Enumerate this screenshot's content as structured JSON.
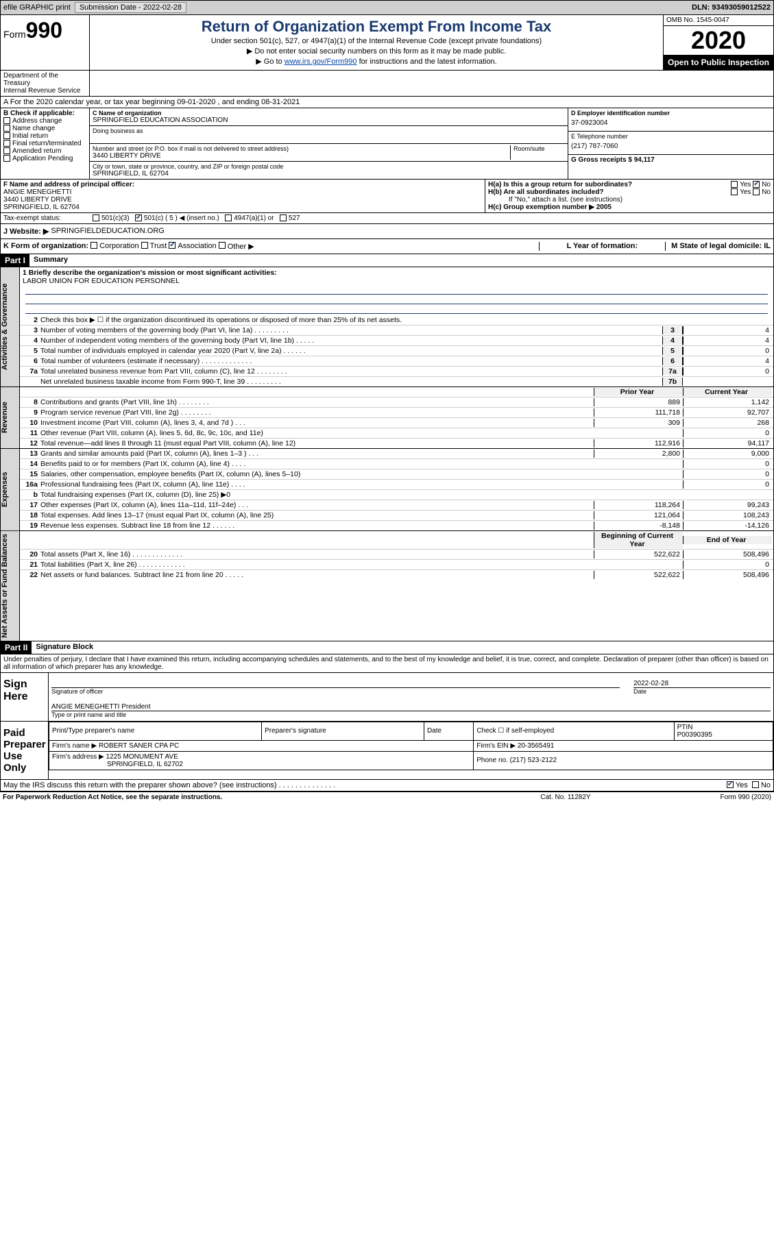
{
  "topbar": {
    "efile": "efile GRAPHIC print",
    "submission_label": "Submission Date - 2022-02-28",
    "dln_label": "DLN: 93493059012522"
  },
  "header": {
    "form_prefix": "Form",
    "form_number": "990",
    "title": "Return of Organization Exempt From Income Tax",
    "subtitle1": "Under section 501(c), 527, or 4947(a)(1) of the Internal Revenue Code (except private foundations)",
    "subtitle2": "▶ Do not enter social security numbers on this form as it may be made public.",
    "subtitle3_prefix": "▶ Go to ",
    "subtitle3_link": "www.irs.gov/Form990",
    "subtitle3_suffix": " for instructions and the latest information.",
    "dept": "Department of the Treasury\nInternal Revenue Service",
    "omb": "OMB No. 1545-0047",
    "year": "2020",
    "open": "Open to Public Inspection"
  },
  "rowA": "A For the 2020 calendar year, or tax year beginning 09-01-2020    , and ending 08-31-2021",
  "sectionB": {
    "label": "B Check if applicable:",
    "items": [
      "Address change",
      "Name change",
      "Initial return",
      "Final return/terminated",
      "Amended return",
      "Application Pending"
    ]
  },
  "sectionC": {
    "name_label": "C Name of organization",
    "name": "SPRINGFIELD EDUCATION ASSOCIATION",
    "dba_label": "Doing business as",
    "street_label": "Number and street (or P.O. box if mail is not delivered to street address)",
    "room_label": "Room/suite",
    "street": "3440 LIBERTY DRIVE",
    "city_label": "City or town, state or province, country, and ZIP or foreign postal code",
    "city": "SPRINGFIELD, IL  62704"
  },
  "sectionD": {
    "ein_label": "D Employer identification number",
    "ein": "37-0923004",
    "tel_label": "E Telephone number",
    "tel": "(217) 787-7060",
    "gross_label": "G Gross receipts $ 94,117"
  },
  "sectionF": {
    "label": "F  Name and address of principal officer:",
    "name": "ANGIE MENEGHETTI",
    "street": "3440 LIBERTY DRIVE",
    "city": "SPRINGFIELD, IL  62704"
  },
  "sectionH": {
    "ha": "H(a)  Is this a group return for subordinates?",
    "hb": "H(b)  Are all subordinates included?",
    "hb_note": "If \"No,\" attach a list. (see instructions)",
    "hc": "H(c)  Group exemption number ▶   2005",
    "yes": "Yes",
    "no": "No"
  },
  "taxExempt": {
    "label": "Tax-exempt status:",
    "c3": "501(c)(3)",
    "c5": "501(c) ( 5 ) ◀ (insert no.)",
    "a1": "4947(a)(1) or",
    "s527": "527"
  },
  "rowJ": {
    "label": "J   Website: ▶",
    "value": "SPRINGFIELDEDUCATION.ORG"
  },
  "rowK": {
    "label": "K Form of organization:",
    "corp": "Corporation",
    "trust": "Trust",
    "assoc": "Association",
    "other": "Other ▶",
    "l_label": "L Year of formation:",
    "m_label": "M State of legal domicile: IL"
  },
  "part1": {
    "hdr": "Part I",
    "title": "Summary",
    "mission_label": "1  Briefly describe the organization's mission or most significant activities:",
    "mission": "LABOR UNION FOR EDUCATION PERSONNEL",
    "line2": "Check this box ▶ ☐  if the organization discontinued its operations or disposed of more than 25% of its net assets.",
    "lines_gov": [
      {
        "n": "3",
        "t": "Number of voting members of the governing body (Part VI, line 1a)   .   .   .   .   .   .   .   .   .",
        "b": "3",
        "v": "4"
      },
      {
        "n": "4",
        "t": "Number of independent voting members of the governing body (Part VI, line 1b)   .   .   .   .   .",
        "b": "4",
        "v": "4"
      },
      {
        "n": "5",
        "t": "Total number of individuals employed in calendar year 2020 (Part V, line 2a)   .   .   .   .   .   .",
        "b": "5",
        "v": "0"
      },
      {
        "n": "6",
        "t": "Total number of volunteers (estimate if necessary)   .   .   .   .   .   .   .   .   .   .   .   .   .",
        "b": "6",
        "v": "4"
      },
      {
        "n": "7a",
        "t": "Total unrelated business revenue from Part VIII, column (C), line 12   .   .   .   .   .   .   .   .",
        "b": "7a",
        "v": "0"
      },
      {
        "n": "",
        "t": "Net unrelated business taxable income from Form 990-T, line 39   .   .   .   .   .   .   .   .   .",
        "b": "7b",
        "v": ""
      }
    ],
    "hdr_prior": "Prior Year",
    "hdr_curr": "Current Year",
    "lines_rev": [
      {
        "n": "8",
        "t": "Contributions and grants (Part VIII, line 1h)   .   .   .   .   .   .   .   .",
        "p": "889",
        "c": "1,142"
      },
      {
        "n": "9",
        "t": "Program service revenue (Part VIII, line 2g)   .   .   .   .   .   .   .   .",
        "p": "111,718",
        "c": "92,707"
      },
      {
        "n": "10",
        "t": "Investment income (Part VIII, column (A), lines 3, 4, and 7d )   .   .   .",
        "p": "309",
        "c": "268"
      },
      {
        "n": "11",
        "t": "Other revenue (Part VIII, column (A), lines 5, 6d, 8c, 9c, 10c, and 11e)",
        "p": "",
        "c": "0"
      },
      {
        "n": "12",
        "t": "Total revenue—add lines 8 through 11 (must equal Part VIII, column (A), line 12)",
        "p": "112,916",
        "c": "94,117"
      }
    ],
    "lines_exp": [
      {
        "n": "13",
        "t": "Grants and similar amounts paid (Part IX, column (A), lines 1–3 )   .   .   .",
        "p": "2,800",
        "c": "9,000"
      },
      {
        "n": "14",
        "t": "Benefits paid to or for members (Part IX, column (A), line 4)   .   .   .   .",
        "p": "",
        "c": "0"
      },
      {
        "n": "15",
        "t": "Salaries, other compensation, employee benefits (Part IX, column (A), lines 5–10)",
        "p": "",
        "c": "0"
      },
      {
        "n": "16a",
        "t": "Professional fundraising fees (Part IX, column (A), line 11e)   .   .   .   .",
        "p": "",
        "c": "0"
      },
      {
        "n": "b",
        "t": "Total fundraising expenses (Part IX, column (D), line 25) ▶0",
        "p": "grey",
        "c": "grey"
      },
      {
        "n": "17",
        "t": "Other expenses (Part IX, column (A), lines 11a–11d, 11f–24e)   .   .   .",
        "p": "118,264",
        "c": "99,243"
      },
      {
        "n": "18",
        "t": "Total expenses. Add lines 13–17 (must equal Part IX, column (A), line 25)",
        "p": "121,064",
        "c": "108,243"
      },
      {
        "n": "19",
        "t": "Revenue less expenses. Subtract line 18 from line 12   .   .   .   .   .   .",
        "p": "-8,148",
        "c": "-14,126"
      }
    ],
    "hdr_beg": "Beginning of Current Year",
    "hdr_end": "End of Year",
    "lines_net": [
      {
        "n": "20",
        "t": "Total assets (Part X, line 16)   .   .   .   .   .   .   .   .   .   .   .   .   .",
        "p": "522,622",
        "c": "508,496"
      },
      {
        "n": "21",
        "t": "Total liabilities (Part X, line 26)   .   .   .   .   .   .   .   .   .   .   .   .",
        "p": "",
        "c": "0"
      },
      {
        "n": "22",
        "t": "Net assets or fund balances. Subtract line 21 from line 20   .   .   .   .   .",
        "p": "522,622",
        "c": "508,496"
      }
    ],
    "vtab_gov": "Activities & Governance",
    "vtab_rev": "Revenue",
    "vtab_exp": "Expenses",
    "vtab_net": "Net Assets or Fund Balances"
  },
  "part2": {
    "hdr": "Part II",
    "title": "Signature Block",
    "decl": "Under penalties of perjury, I declare that I have examined this return, including accompanying schedules and statements, and to the best of my knowledge and belief, it is true, correct, and complete. Declaration of preparer (other than officer) is based on all information of which preparer has any knowledge.",
    "sign_here": "Sign Here",
    "sig_officer": "Signature of officer",
    "date_label": "Date",
    "date": "2022-02-28",
    "officer_name": "ANGIE MENEGHETTI President",
    "type_name": "Type or print name and title",
    "paid_label": "Paid Preparer Use Only",
    "prep_name_label": "Print/Type preparer's name",
    "prep_sig_label": "Preparer's signature",
    "check_if": "Check ☐ if self-employed",
    "ptin_label": "PTIN",
    "ptin": "P00390395",
    "firm_name_label": "Firm's name      ▶",
    "firm_name": "ROBERT SANER CPA PC",
    "firm_ein_label": "Firm's EIN ▶",
    "firm_ein": "20-3565491",
    "firm_addr_label": "Firm's address ▶",
    "firm_addr": "1225 MONUMENT AVE",
    "firm_city": "SPRINGFIELD, IL  62702",
    "phone_label": "Phone no.",
    "phone": "(217) 523-2122",
    "discuss": "May the IRS discuss this return with the preparer shown above? (see instructions)   .   .   .   .   .   .   .   .   .   .   .   .   .   .",
    "yes": "Yes",
    "no": "No"
  },
  "footer": {
    "left": "For Paperwork Reduction Act Notice, see the separate instructions.",
    "mid": "Cat. No. 11282Y",
    "right": "Form 990 (2020)"
  }
}
